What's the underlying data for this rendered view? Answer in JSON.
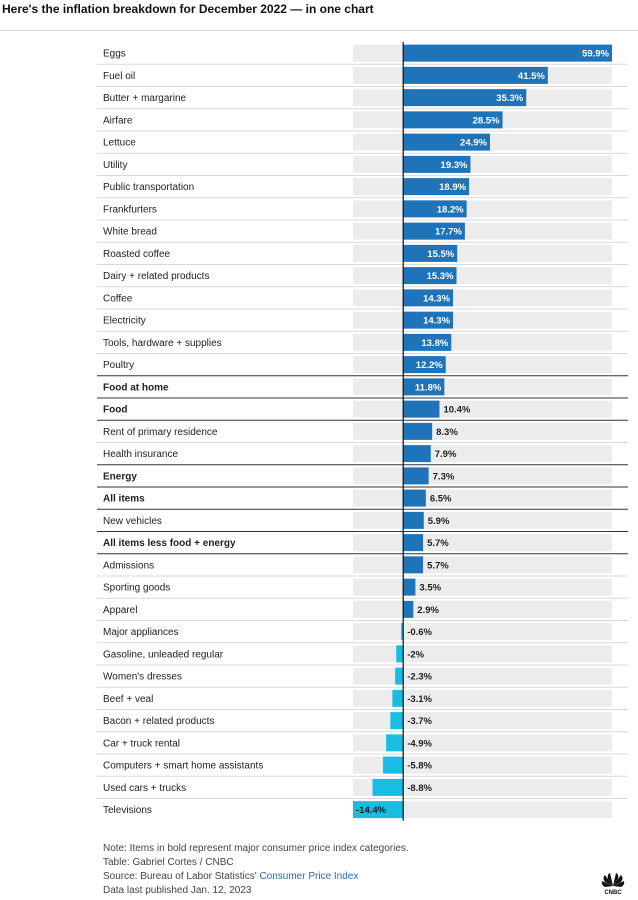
{
  "title": "Here's the inflation breakdown for December 2022 — in one chart",
  "chart_data": {
    "type": "bar",
    "orientation": "horizontal",
    "value_unit": "%",
    "positive_color": "#1f74b9",
    "negative_color": "#19bde3",
    "track_color": "#ececec",
    "xlim": [
      -14.4,
      59.9
    ],
    "rows": [
      {
        "label": "Eggs",
        "value": 59.9,
        "display": "59.9%",
        "bold": false
      },
      {
        "label": "Fuel oil",
        "value": 41.5,
        "display": "41.5%",
        "bold": false
      },
      {
        "label": "Butter + margarine",
        "value": 35.3,
        "display": "35.3%",
        "bold": false
      },
      {
        "label": "Airfare",
        "value": 28.5,
        "display": "28.5%",
        "bold": false
      },
      {
        "label": "Lettuce",
        "value": 24.9,
        "display": "24.9%",
        "bold": false
      },
      {
        "label": "Utility",
        "value": 19.3,
        "display": "19.3%",
        "bold": false
      },
      {
        "label": "Public transportation",
        "value": 18.9,
        "display": "18.9%",
        "bold": false
      },
      {
        "label": "Frankfurters",
        "value": 18.2,
        "display": "18.2%",
        "bold": false
      },
      {
        "label": "White bread",
        "value": 17.7,
        "display": "17.7%",
        "bold": false
      },
      {
        "label": "Roasted coffee",
        "value": 15.5,
        "display": "15.5%",
        "bold": false
      },
      {
        "label": "Dairy + related products",
        "value": 15.3,
        "display": "15.3%",
        "bold": false
      },
      {
        "label": "Coffee",
        "value": 14.3,
        "display": "14.3%",
        "bold": false
      },
      {
        "label": "Electricity",
        "value": 14.3,
        "display": "14.3%",
        "bold": false
      },
      {
        "label": "Tools, hardware + supplies",
        "value": 13.8,
        "display": "13.8%",
        "bold": false
      },
      {
        "label": "Poultry",
        "value": 12.2,
        "display": "12.2%",
        "bold": false
      },
      {
        "label": "Food at home",
        "value": 11.8,
        "display": "11.8%",
        "bold": true
      },
      {
        "label": "Food",
        "value": 10.4,
        "display": "10.4%",
        "bold": true
      },
      {
        "label": "Rent of primary residence",
        "value": 8.3,
        "display": "8.3%",
        "bold": false
      },
      {
        "label": "Health insurance",
        "value": 7.9,
        "display": "7.9%",
        "bold": false
      },
      {
        "label": "Energy",
        "value": 7.3,
        "display": "7.3%",
        "bold": true
      },
      {
        "label": "All items",
        "value": 6.5,
        "display": "6.5%",
        "bold": true
      },
      {
        "label": "New vehicles",
        "value": 5.9,
        "display": "5.9%",
        "bold": false
      },
      {
        "label": "All items less food + energy",
        "value": 5.7,
        "display": "5.7%",
        "bold": true
      },
      {
        "label": "Admissions",
        "value": 5.7,
        "display": "5.7%",
        "bold": false
      },
      {
        "label": "Sporting goods",
        "value": 3.5,
        "display": "3.5%",
        "bold": false
      },
      {
        "label": "Apparel",
        "value": 2.9,
        "display": "2.9%",
        "bold": false
      },
      {
        "label": "Major appliances",
        "value": -0.6,
        "display": "-0.6%",
        "bold": false
      },
      {
        "label": "Gasoline, unleaded regular",
        "value": -2,
        "display": "-2%",
        "bold": false
      },
      {
        "label": "Women's dresses",
        "value": -2.3,
        "display": "-2.3%",
        "bold": false
      },
      {
        "label": "Beef + veal",
        "value": -3.1,
        "display": "-3.1%",
        "bold": false
      },
      {
        "label": "Bacon + related products",
        "value": -3.7,
        "display": "-3.7%",
        "bold": false
      },
      {
        "label": "Car + truck rental",
        "value": -4.9,
        "display": "-4.9%",
        "bold": false
      },
      {
        "label": "Computers + smart home assistants",
        "value": -5.8,
        "display": "-5.8%",
        "bold": false
      },
      {
        "label": "Used cars + trucks",
        "value": -8.8,
        "display": "-8.8%",
        "bold": false
      },
      {
        "label": "Televisions",
        "value": -14.4,
        "display": "-14.4%",
        "bold": false
      }
    ]
  },
  "notes": {
    "note": "Note: Items in bold represent major consumer price index categories.",
    "table_credit": "Table: Gabriel Cortes / CNBC",
    "source_prefix": "Source: Bureau of Labor Statistics' ",
    "source_link": "Consumer Price Index",
    "published": "Data last published Jan. 12, 2023"
  },
  "logo": {
    "text": "CNBC",
    "icon": "cnbc-peacock-icon"
  }
}
